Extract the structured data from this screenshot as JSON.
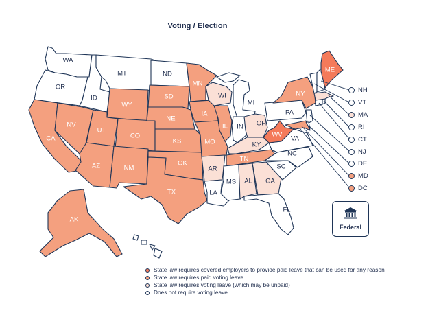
{
  "title": "Voting / Election",
  "colors": {
    "any_reason": "#f47a5a",
    "paid": "#f4a07f",
    "may_be_unpaid": "#fbe0d6",
    "none": "#ffffff",
    "stroke": "#1f3557"
  },
  "states": {
    "WA": "WA",
    "OR": "OR",
    "CA": "CA",
    "NV": "NV",
    "ID": "ID",
    "MT": "MT",
    "WY": "WY",
    "UT": "UT",
    "AZ": "AZ",
    "CO": "CO",
    "NM": "NM",
    "ND": "ND",
    "SD": "SD",
    "NE": "NE",
    "KS": "KS",
    "OK": "OK",
    "TX": "TX",
    "MN": "MN",
    "IA": "IA",
    "MO": "MO",
    "AR": "AR",
    "LA": "LA",
    "WI": "WI",
    "IL": "IL",
    "MI": "MI",
    "IN": "IN",
    "OH": "OH",
    "KY": "KY",
    "TN": "TN",
    "MS": "MS",
    "AL": "AL",
    "GA": "GA",
    "FL": "FL",
    "SC": "SC",
    "NC": "NC",
    "VA": "VA",
    "WV": "WV",
    "PA": "PA",
    "NY": "NY",
    "ME": "ME",
    "AK": "AK"
  },
  "callouts": [
    {
      "label": "NH",
      "status": "none"
    },
    {
      "label": "VT",
      "status": "none"
    },
    {
      "label": "MA",
      "status": "may_be_unpaid"
    },
    {
      "label": "RI",
      "status": "none"
    },
    {
      "label": "CT",
      "status": "none"
    },
    {
      "label": "NJ",
      "status": "none"
    },
    {
      "label": "DE",
      "status": "none"
    },
    {
      "label": "MD",
      "status": "paid"
    },
    {
      "label": "DC",
      "status": "paid"
    }
  ],
  "federal": {
    "label": "Federal",
    "icon": "government-building-icon"
  },
  "legend": [
    {
      "status": "any_reason",
      "label": "State law requires covered employers to provide paid leave that can be used for any reason"
    },
    {
      "status": "paid",
      "label": "State law requires paid voting leave"
    },
    {
      "status": "may_be_unpaid",
      "label": "State law requires voting leave (which may be unpaid)"
    },
    {
      "status": "none",
      "label": "Does not require voting leave"
    }
  ]
}
